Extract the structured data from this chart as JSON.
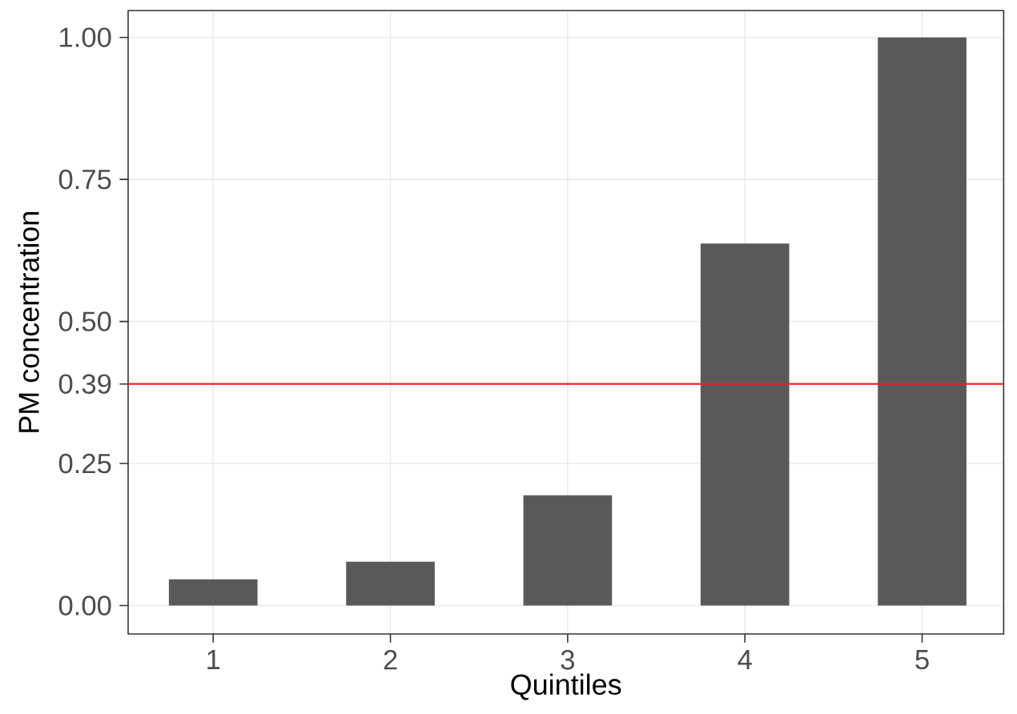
{
  "chart_data": {
    "type": "bar",
    "xlabel": "Quintiles",
    "ylabel": "PM concentration",
    "categories": [
      "1",
      "2",
      "3",
      "4",
      "5"
    ],
    "values": [
      0.046,
      0.077,
      0.194,
      0.637,
      1.0
    ],
    "color": "#595959",
    "ylim": [
      -0.05,
      1.047
    ],
    "yticks": [
      {
        "value": 0,
        "label": "0.00"
      },
      0.25,
      0.39,
      {
        "value": 0.5,
        "label": "0.50"
      },
      0.75,
      {
        "value": 1.0,
        "label": "1.00"
      }
    ],
    "grid": true,
    "ref_lines": [
      {
        "axis": "y",
        "value": 0.39,
        "color": "#e0262b"
      }
    ]
  }
}
